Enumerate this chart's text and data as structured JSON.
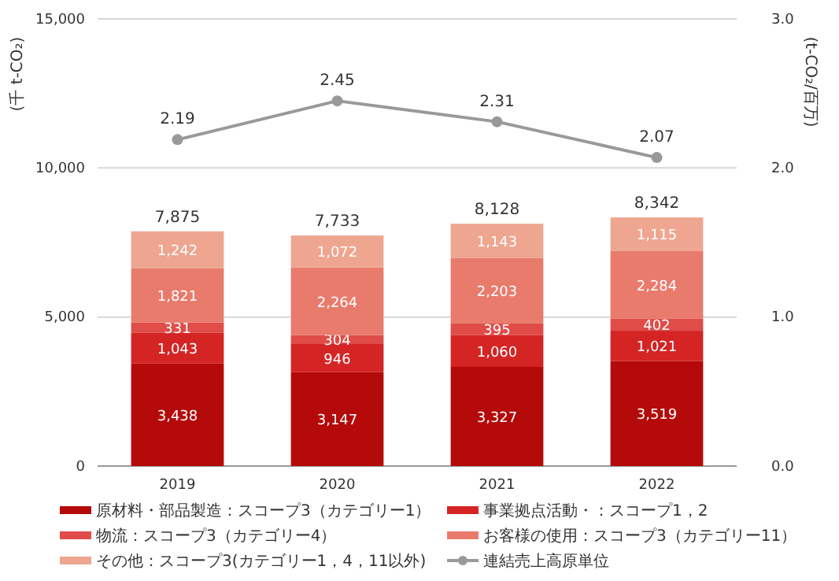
{
  "chart_data": {
    "type": "bar",
    "stacked": true,
    "categories": [
      "2019",
      "2020",
      "2021",
      "2022"
    ],
    "ylabel": "(千 t-CO₂)",
    "y2label": "(t-CO₂/百万)",
    "ylim": [
      0,
      15000
    ],
    "yticks": [
      {
        "value": 0,
        "label": "0"
      },
      {
        "value": 5000,
        "label": "5,000"
      },
      {
        "value": 10000,
        "label": "10,000"
      },
      {
        "value": 15000,
        "label": "15,000"
      }
    ],
    "y2lim": [
      0,
      3
    ],
    "y2ticks": [
      {
        "value": 0,
        "label": "0.0"
      },
      {
        "value": 1,
        "label": "1.0"
      },
      {
        "value": 2,
        "label": "2.0"
      },
      {
        "value": 3,
        "label": "3.0"
      }
    ],
    "grid": "y",
    "legend": "bottom",
    "data_labels": true,
    "totals": [
      "7,875",
      "7,733",
      "8,128",
      "8,342"
    ],
    "series": [
      {
        "name": "原材料・部品製造：スコープ3（カテゴリー1）",
        "color": "#b50a0a",
        "values": [
          3438,
          3147,
          3327,
          3519
        ],
        "value_labels": [
          "3,438",
          "3,147",
          "3,327",
          "3,519"
        ]
      },
      {
        "name": "事業拠点活動・：スコープ1，2",
        "color": "#d42424",
        "values": [
          1043,
          946,
          1060,
          1021
        ],
        "value_labels": [
          "1,043",
          "946",
          "1,060",
          "1,021"
        ]
      },
      {
        "name": "物流：スコープ3（カテゴリー4）",
        "color": "#e04c48",
        "values": [
          331,
          304,
          395,
          402
        ],
        "value_labels": [
          "331",
          "304",
          "395",
          "402"
        ]
      },
      {
        "name": "お客様の使用：スコープ3（カテゴリー11）",
        "color": "#e87b6c",
        "values": [
          1821,
          2264,
          2203,
          2284
        ],
        "value_labels": [
          "1,821",
          "2,264",
          "2,203",
          "2,284"
        ]
      },
      {
        "name": "その他：スコープ3(カテゴリー1，4，11以外)",
        "color": "#eea690",
        "values": [
          1242,
          1072,
          1143,
          1115
        ],
        "value_labels": [
          "1,242",
          "1,072",
          "1,143",
          "1,115"
        ]
      },
      {
        "name": "連結売上高原単位",
        "type": "line",
        "axis": "y2",
        "color": "#999999",
        "marker": "circle",
        "values": [
          2.19,
          2.45,
          2.31,
          2.07
        ],
        "value_labels": [
          "2.19",
          "2.45",
          "2.31",
          "2.07"
        ]
      }
    ]
  }
}
